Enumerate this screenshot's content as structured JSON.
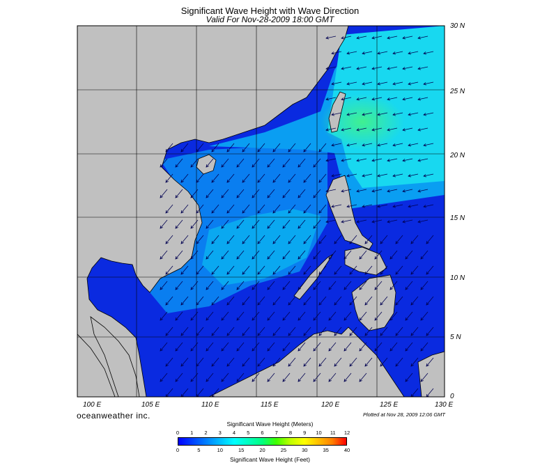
{
  "header": {
    "title": "Significant Wave Height with Wave Direction",
    "subtitle": "Valid For Nov-28-2009 18:00 GMT"
  },
  "axes": {
    "lat_labels": [
      "30 N",
      "25 N",
      "20 N",
      "15 N",
      "10 N",
      "5 N",
      "0"
    ],
    "lon_labels": [
      "100 E",
      "105 E",
      "110 E",
      "115 E",
      "120 E",
      "125 E",
      "130 E"
    ]
  },
  "footer": {
    "brand": "oceanweather inc.",
    "plotted": "Plotted at Nov 28, 2009 12:06 GMT"
  },
  "scale": {
    "meters_title": "Significant Wave Height (Meters)",
    "feet_title": "Significant Wave Height (Feet)",
    "meters_ticks": [
      "0",
      "1",
      "2",
      "3",
      "4",
      "5",
      "6",
      "7",
      "8",
      "9",
      "10",
      "11",
      "12"
    ],
    "feet_ticks": [
      "0",
      "5",
      "10",
      "15",
      "20",
      "25",
      "30",
      "35",
      "40"
    ],
    "colors": [
      "#0000ff",
      "#0040ff",
      "#0080ff",
      "#00c0ff",
      "#00ffff",
      "#00ffc0",
      "#00ff80",
      "#40ff00",
      "#c0ff00",
      "#ffff00",
      "#ffc000",
      "#ff8000",
      "#ff0000"
    ]
  },
  "map_colors": {
    "land": "#c0c0c0",
    "sea_deep": "#0a2ae0",
    "sea_mid": "#0a7ef0",
    "sea_light": "#18d8f0",
    "sea_high": "#22f0c0",
    "grid": "#000000",
    "arrow": "#000050"
  }
}
